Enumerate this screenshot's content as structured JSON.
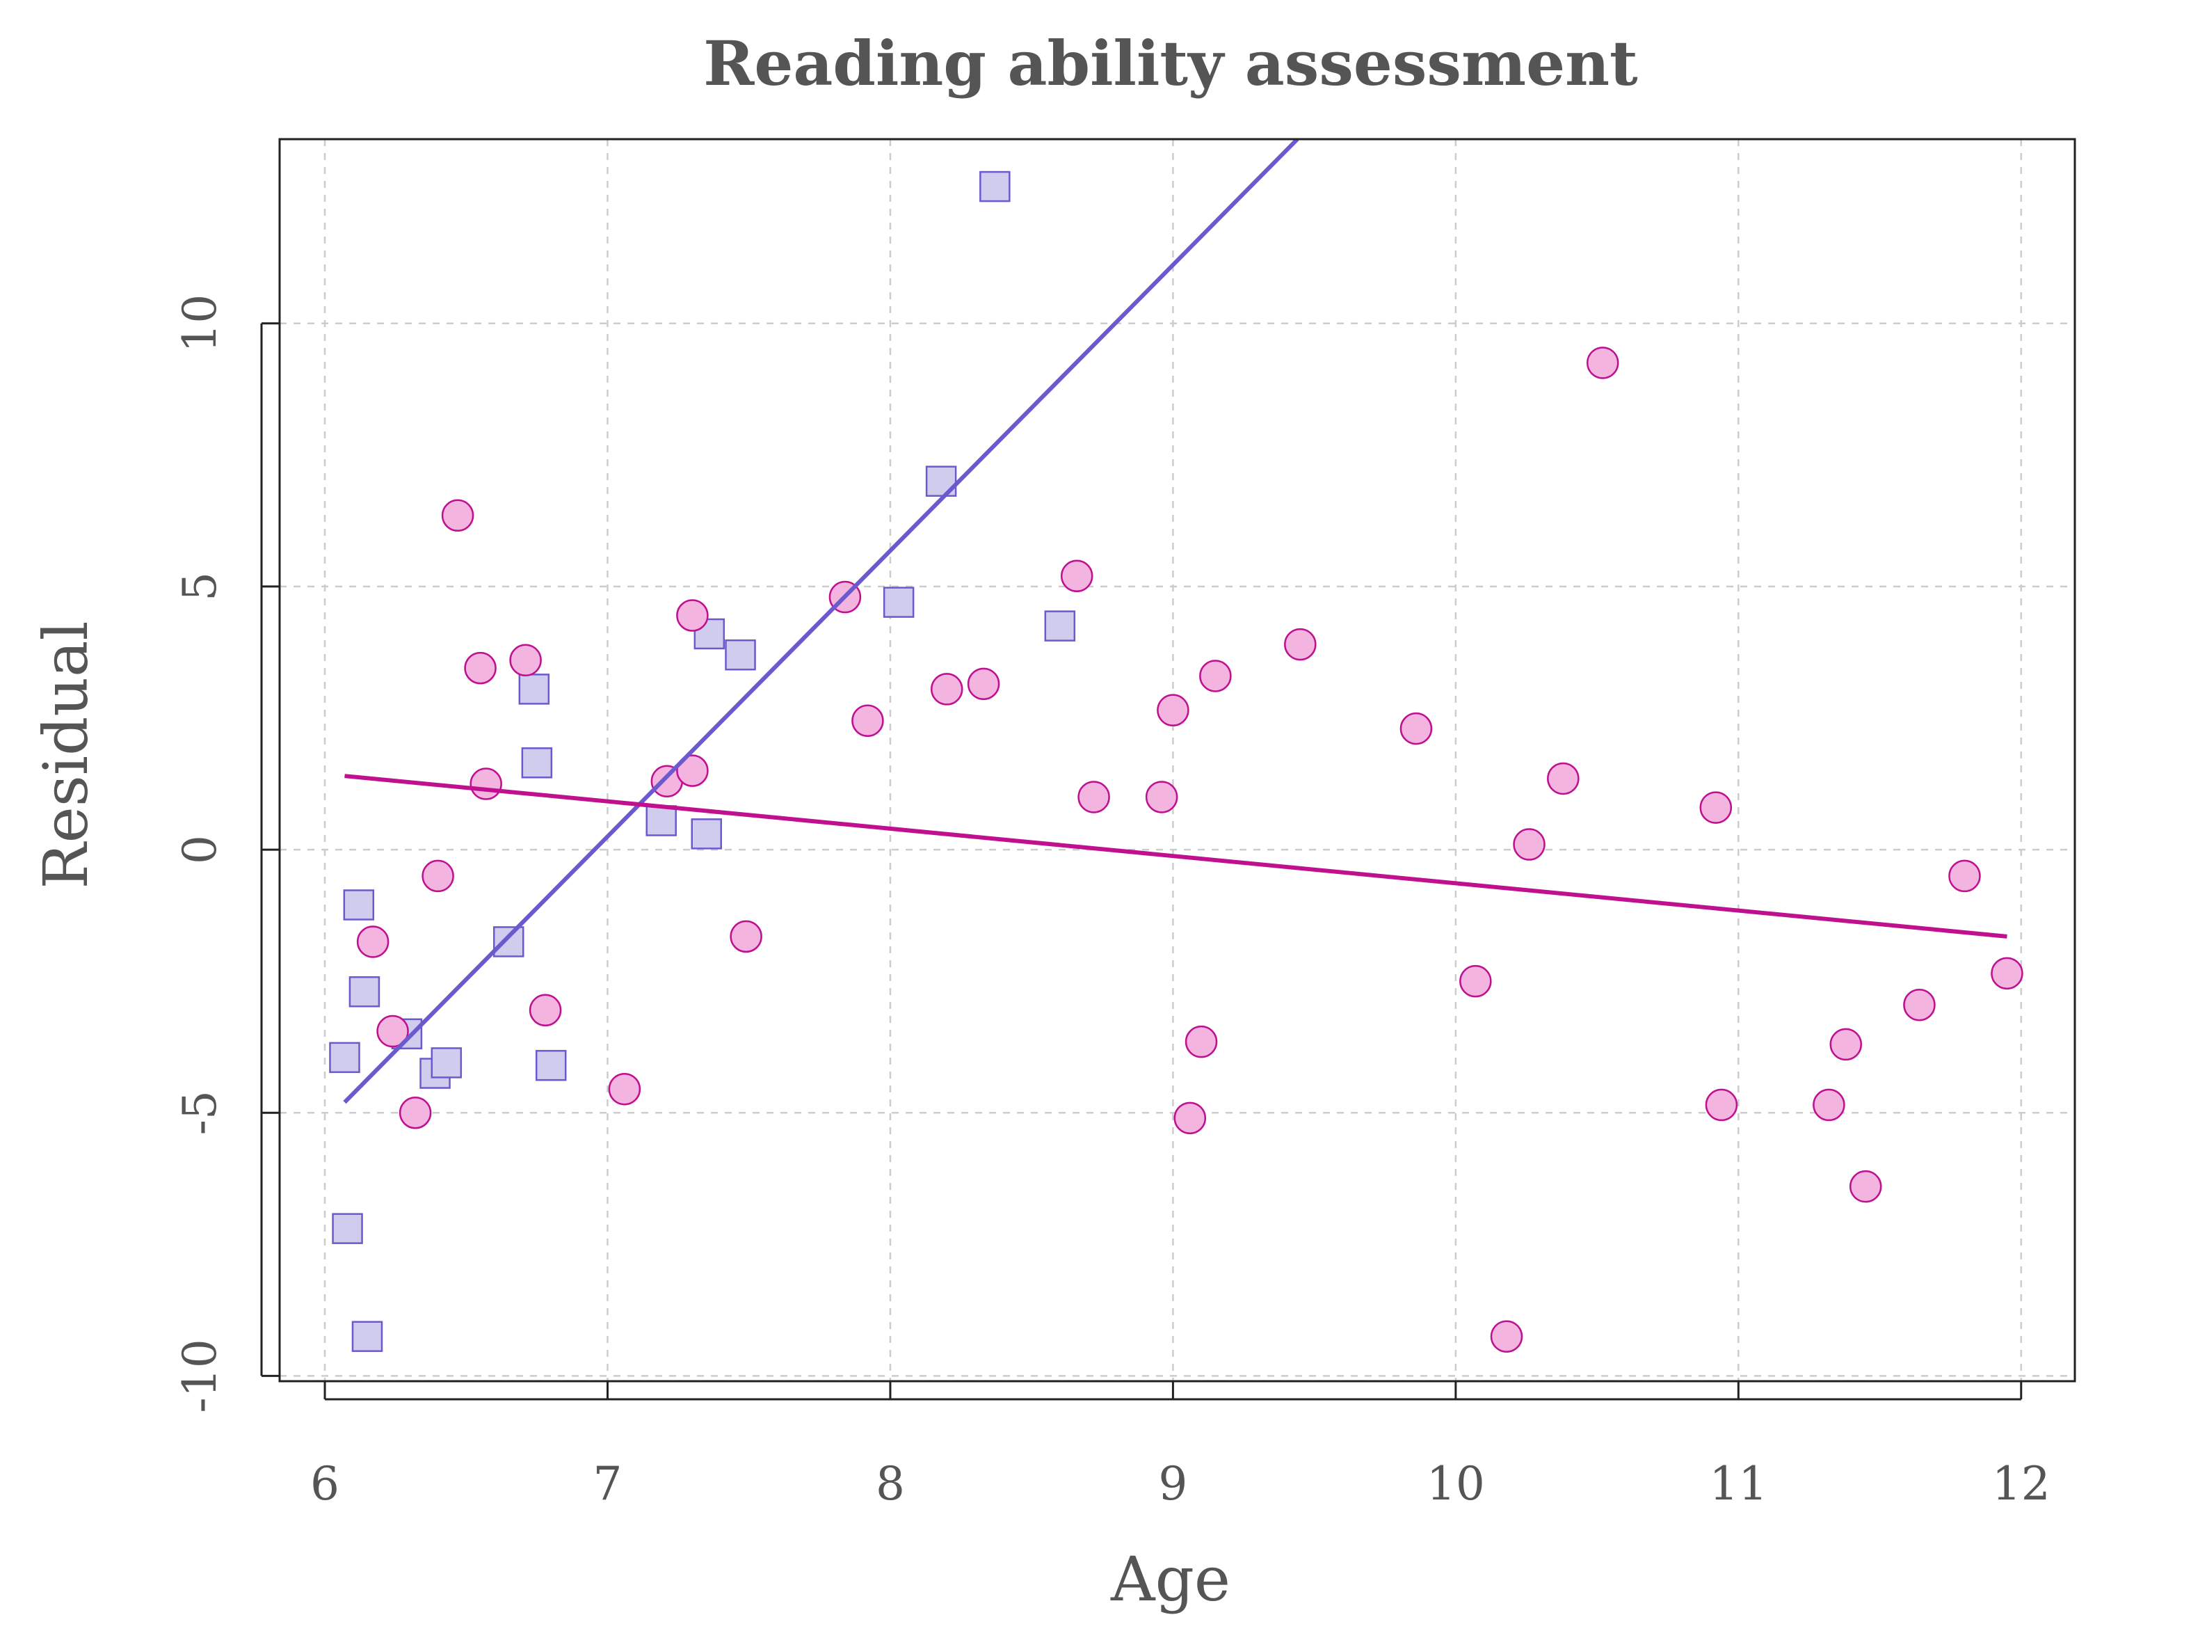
{
  "chart_data": {
    "type": "scatter",
    "title": "Reading ability assessment",
    "xlabel": "Age",
    "ylabel": "Residual",
    "xlim": [
      5.84,
      12.19
    ],
    "ylim": [
      -10.1,
      13.5
    ],
    "xticks": [
      6,
      7,
      8,
      9,
      10,
      11,
      12
    ],
    "yticks": [
      -10,
      -5,
      0,
      5,
      10
    ],
    "grid": true,
    "legend": "none",
    "series": [
      {
        "marker": "square",
        "color": "#6A5ACD",
        "fill": "#D0CCEE",
        "points": [
          [
            6.07,
            -3.95
          ],
          [
            6.08,
            -7.2
          ],
          [
            6.12,
            -1.05
          ],
          [
            6.14,
            -2.7
          ],
          [
            6.15,
            -9.25
          ],
          [
            6.29,
            -3.5
          ],
          [
            6.39,
            -4.25
          ],
          [
            6.43,
            -4.05
          ],
          [
            6.65,
            -1.75
          ],
          [
            6.74,
            3.05
          ],
          [
            6.75,
            1.65
          ],
          [
            6.8,
            -4.1
          ],
          [
            7.19,
            0.55
          ],
          [
            7.35,
            0.3
          ],
          [
            7.36,
            4.1
          ],
          [
            7.47,
            3.7
          ],
          [
            8.03,
            4.7
          ],
          [
            8.18,
            7.0
          ],
          [
            8.37,
            12.6
          ],
          [
            8.6,
            4.25
          ]
        ],
        "fit_line": [
          [
            6.07,
            -4.8
          ],
          [
            9.44,
            13.5
          ]
        ]
      },
      {
        "marker": "circle",
        "color": "#C0108F",
        "fill": "#F3B4DF",
        "points": [
          [
            6.17,
            -1.75
          ],
          [
            6.24,
            -3.45
          ],
          [
            6.32,
            -5.0
          ],
          [
            6.4,
            -0.5
          ],
          [
            6.47,
            6.35
          ],
          [
            6.55,
            3.45
          ],
          [
            6.57,
            1.25
          ],
          [
            6.71,
            3.6
          ],
          [
            6.78,
            -3.05
          ],
          [
            7.06,
            -4.55
          ],
          [
            7.21,
            1.3
          ],
          [
            7.3,
            4.45
          ],
          [
            7.3,
            1.5
          ],
          [
            7.49,
            -1.65
          ],
          [
            7.84,
            4.8
          ],
          [
            7.92,
            2.45
          ],
          [
            8.2,
            3.05
          ],
          [
            8.33,
            3.15
          ],
          [
            8.66,
            5.2
          ],
          [
            8.72,
            1.0
          ],
          [
            8.96,
            1.0
          ],
          [
            9.0,
            2.65
          ],
          [
            9.06,
            -5.1
          ],
          [
            9.1,
            -3.65
          ],
          [
            9.15,
            3.3
          ],
          [
            9.45,
            3.9
          ],
          [
            9.86,
            2.3
          ],
          [
            10.07,
            -2.5
          ],
          [
            10.18,
            -9.25
          ],
          [
            10.26,
            0.1
          ],
          [
            10.38,
            1.35
          ],
          [
            10.52,
            9.25
          ],
          [
            10.92,
            0.8
          ],
          [
            10.94,
            -4.85
          ],
          [
            11.32,
            -4.85
          ],
          [
            11.38,
            -3.7
          ],
          [
            11.45,
            -6.4
          ],
          [
            11.64,
            -2.95
          ],
          [
            11.8,
            -0.5
          ],
          [
            11.95,
            -2.35
          ]
        ],
        "fit_line": [
          [
            6.07,
            1.4
          ],
          [
            11.95,
            -1.65
          ]
        ]
      }
    ]
  }
}
